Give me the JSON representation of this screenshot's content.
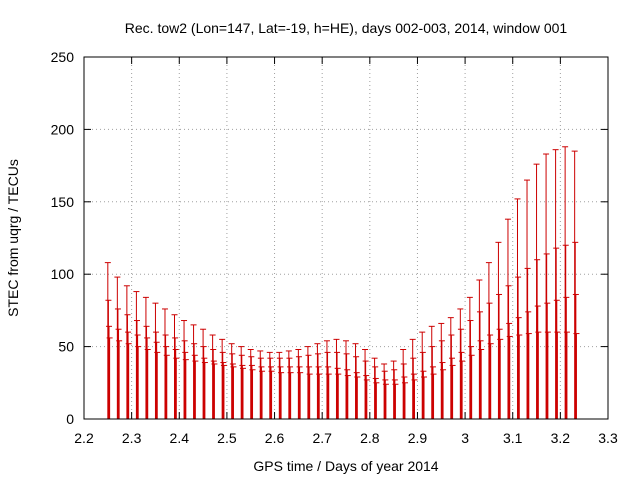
{
  "chart_data": {
    "type": "scatter",
    "title": "Rec. tow2 (Lon=147, Lat=-19, h=HE), days 002-003, 2014, window 001",
    "xlabel": "GPS time / Days of year 2014",
    "ylabel": "STEC from uqrg / TECUs",
    "xlim": [
      2.2,
      3.3
    ],
    "ylim": [
      0,
      250
    ],
    "xticks": [
      "2.2",
      "2.3",
      "2.4",
      "2.5",
      "2.6",
      "2.7",
      "2.8",
      "2.9",
      "3",
      "3.1",
      "3.2",
      "3.3"
    ],
    "yticks": [
      "0",
      "50",
      "100",
      "150",
      "200",
      "250"
    ],
    "grid": true,
    "error_bar_lower": 0,
    "series": [
      {
        "x": [
          2.25,
          2.27,
          2.29,
          2.31,
          2.33,
          2.35,
          2.37,
          2.39,
          2.41,
          2.43,
          2.45,
          2.47,
          2.49,
          2.51,
          2.53,
          2.55,
          2.57,
          2.59,
          2.61,
          2.63,
          2.65,
          2.67,
          2.69,
          2.71,
          2.73,
          2.75,
          2.77,
          2.79,
          2.81,
          2.83,
          2.85,
          2.87,
          2.89,
          2.91,
          2.93,
          2.95,
          2.97,
          2.99,
          3.01,
          3.03,
          3.05,
          3.07,
          3.09,
          3.11,
          3.13,
          3.15,
          3.17,
          3.19,
          3.21,
          3.23
        ],
        "values": [
          108,
          98,
          92,
          88,
          84,
          80,
          76,
          72,
          68,
          65,
          62,
          58,
          55,
          52,
          50,
          48,
          47,
          46,
          46,
          47,
          48,
          50,
          52,
          54,
          55,
          54,
          52,
          48,
          42,
          38,
          40,
          48,
          55,
          60,
          64,
          66,
          70,
          76,
          84,
          96,
          108,
          122,
          138,
          152,
          165,
          176,
          183,
          186,
          188,
          185
        ]
      },
      {
        "x": [
          2.25,
          2.27,
          2.29,
          2.31,
          2.33,
          2.35,
          2.37,
          2.39,
          2.41,
          2.43,
          2.45,
          2.47,
          2.49,
          2.51,
          2.53,
          2.55,
          2.57,
          2.59,
          2.61,
          2.63,
          2.65,
          2.67,
          2.69,
          2.71,
          2.73,
          2.75,
          2.77,
          2.79,
          2.81,
          2.83,
          2.85,
          2.87,
          2.89,
          2.91,
          2.93,
          2.95,
          2.97,
          2.99,
          3.01,
          3.03,
          3.05,
          3.07,
          3.09,
          3.11,
          3.13,
          3.15,
          3.17,
          3.19,
          3.21,
          3.23
        ],
        "values": [
          82,
          76,
          72,
          68,
          64,
          60,
          58,
          56,
          54,
          52,
          50,
          48,
          46,
          45,
          44,
          43,
          42,
          42,
          42,
          42,
          43,
          44,
          45,
          46,
          46,
          45,
          43,
          40,
          36,
          33,
          34,
          38,
          42,
          46,
          50,
          54,
          58,
          62,
          68,
          74,
          80,
          86,
          92,
          98,
          104,
          110,
          114,
          118,
          120,
          122
        ]
      },
      {
        "x": [
          2.25,
          2.27,
          2.29,
          2.31,
          2.33,
          2.35,
          2.37,
          2.39,
          2.41,
          2.43,
          2.45,
          2.47,
          2.49,
          2.51,
          2.53,
          2.55,
          2.57,
          2.59,
          2.61,
          2.63,
          2.65,
          2.67,
          2.69,
          2.71,
          2.73,
          2.75,
          2.77,
          2.79,
          2.81,
          2.83,
          2.85,
          2.87,
          2.89,
          2.91,
          2.93,
          2.95,
          2.97,
          2.99,
          3.01,
          3.03,
          3.05,
          3.07,
          3.09,
          3.11,
          3.13,
          3.15,
          3.17,
          3.19,
          3.21,
          3.23
        ],
        "values": [
          64,
          62,
          60,
          58,
          56,
          53,
          50,
          48,
          46,
          44,
          42,
          40,
          39,
          38,
          37,
          37,
          36,
          36,
          36,
          36,
          36,
          36,
          36,
          36,
          35,
          34,
          32,
          30,
          28,
          27,
          27,
          29,
          31,
          33,
          36,
          39,
          42,
          46,
          50,
          54,
          58,
          62,
          66,
          70,
          74,
          78,
          80,
          82,
          84,
          86
        ]
      },
      {
        "x": [
          2.25,
          2.27,
          2.29,
          2.31,
          2.33,
          2.35,
          2.37,
          2.39,
          2.41,
          2.43,
          2.45,
          2.47,
          2.49,
          2.51,
          2.53,
          2.55,
          2.57,
          2.59,
          2.61,
          2.63,
          2.65,
          2.67,
          2.69,
          2.71,
          2.73,
          2.75,
          2.77,
          2.79,
          2.81,
          2.83,
          2.85,
          2.87,
          2.89,
          2.91,
          2.93,
          2.95,
          2.97,
          2.99,
          3.01,
          3.03,
          3.05,
          3.07,
          3.09,
          3.11,
          3.13,
          3.15,
          3.17,
          3.19,
          3.21,
          3.23
        ],
        "values": [
          56,
          54,
          52,
          50,
          48,
          46,
          44,
          42,
          41,
          40,
          39,
          38,
          37,
          36,
          35,
          34,
          33,
          33,
          32,
          32,
          32,
          31,
          31,
          31,
          31,
          30,
          29,
          27,
          25,
          24,
          24,
          25,
          27,
          29,
          31,
          34,
          37,
          40,
          44,
          48,
          52,
          55,
          57,
          58,
          59,
          60,
          60,
          60,
          60,
          59
        ]
      }
    ]
  }
}
